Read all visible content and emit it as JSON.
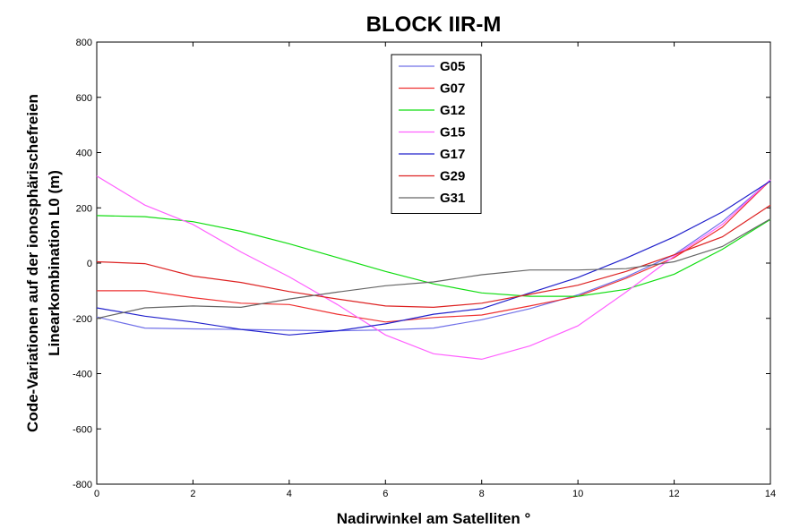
{
  "chart_data": {
    "type": "line",
    "title": "BLOCK IIR-M",
    "xlabel": "Nadirwinkel am Satelliten °",
    "ylabel_lines": [
      "Code-Variationen auf der ionosphärischefreien",
      "Linearkombination L0 (m)"
    ],
    "xlim": [
      0,
      14
    ],
    "ylim": [
      -800,
      800
    ],
    "xticks": [
      0,
      2,
      4,
      6,
      8,
      10,
      12,
      14
    ],
    "yticks": [
      -800,
      -600,
      -400,
      -200,
      0,
      200,
      400,
      600,
      800
    ],
    "grid": false,
    "legend_position": "top-center",
    "x": [
      0,
      1,
      2,
      3,
      4,
      5,
      6,
      7,
      8,
      9,
      10,
      11,
      12,
      13,
      14
    ],
    "series": [
      {
        "name": "G05",
        "color": "#7070e8",
        "values": [
          -195,
          -235,
          -238,
          -240,
          -243,
          -245,
          -242,
          -235,
          -205,
          -165,
          -115,
          -50,
          30,
          150,
          300
        ]
      },
      {
        "name": "G07",
        "color": "#ee3030",
        "values": [
          -100,
          -100,
          -125,
          -145,
          -150,
          -185,
          -213,
          -197,
          -188,
          -155,
          -120,
          -55,
          20,
          130,
          300
        ]
      },
      {
        "name": "G12",
        "color": "#11dd11",
        "values": [
          172,
          168,
          150,
          115,
          70,
          20,
          -30,
          -75,
          -108,
          -120,
          -120,
          -95,
          -40,
          50,
          158
        ]
      },
      {
        "name": "G15",
        "color": "#ff60ff",
        "values": [
          315,
          210,
          140,
          40,
          -50,
          -150,
          -260,
          -328,
          -348,
          -300,
          -227,
          -105,
          25,
          140,
          302
        ]
      },
      {
        "name": "G17",
        "color": "#2222cc",
        "values": [
          -162,
          -192,
          -213,
          -240,
          -260,
          -245,
          -220,
          -185,
          -165,
          -108,
          -52,
          18,
          95,
          185,
          297
        ]
      },
      {
        "name": "G29",
        "color": "#dd2222",
        "values": [
          5,
          -2,
          -47,
          -70,
          -103,
          -130,
          -155,
          -160,
          -145,
          -113,
          -80,
          -30,
          30,
          95,
          210
        ]
      },
      {
        "name": "G31",
        "color": "#666666",
        "values": [
          -200,
          -162,
          -155,
          -160,
          -130,
          -105,
          -82,
          -68,
          -42,
          -25,
          -25,
          -20,
          5,
          60,
          160
        ]
      }
    ]
  }
}
